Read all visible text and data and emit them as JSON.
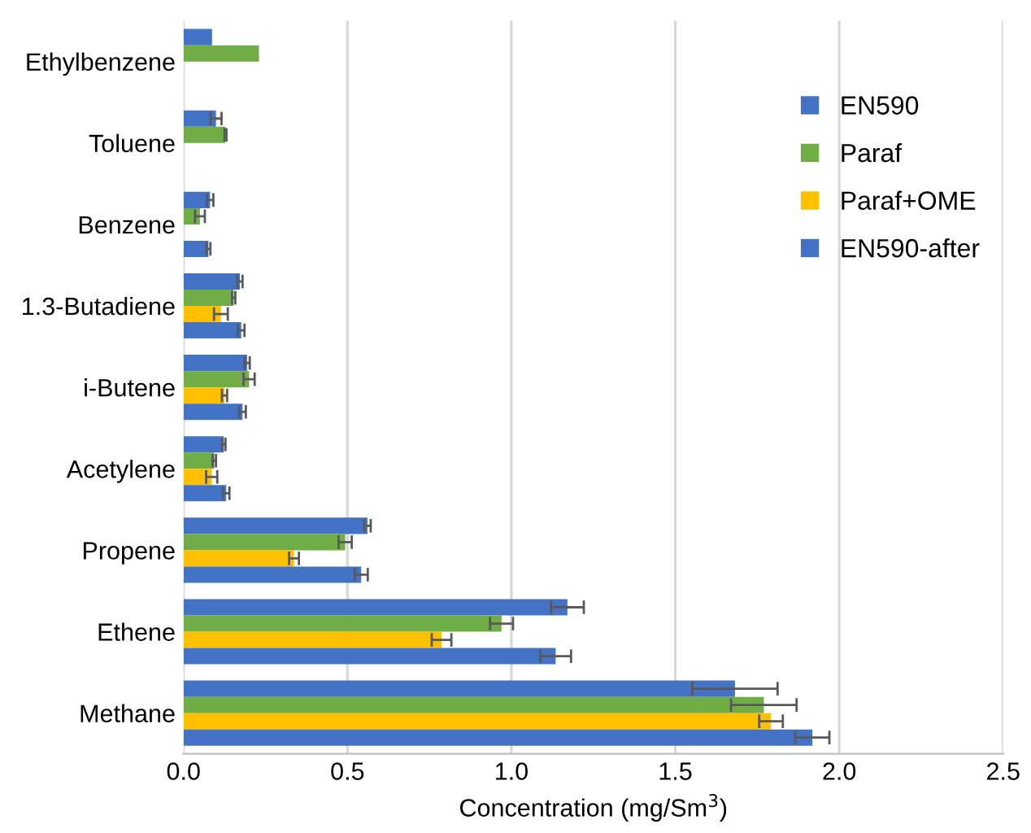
{
  "chart_data": {
    "type": "bar",
    "orientation": "horizontal",
    "xlabel": "Concentration (mg/Sm$^{3}$)",
    "categories": [
      "Ethylbenzene",
      "Toluene",
      "Benzene",
      "1.3-Butadiene",
      "i-Butene",
      "Acetylene",
      "Propene",
      "Ethene",
      "Methane"
    ],
    "series": [
      {
        "name": "EN590",
        "color": "#4472c4",
        "values": [
          0.087,
          0.099,
          0.081,
          0.172,
          0.194,
          0.123,
          0.561,
          1.171,
          1.682
        ],
        "errors": [
          null,
          0.017,
          0.01,
          0.008,
          0.008,
          0.005,
          0.01,
          0.05,
          0.13
        ]
      },
      {
        "name": "Paraf",
        "color": "#70ad47",
        "values": [
          0.23,
          0.128,
          0.05,
          0.153,
          0.2,
          0.094,
          0.493,
          0.97,
          1.77
        ],
        "errors": [
          null,
          0.003,
          0.015,
          0.005,
          0.017,
          0.005,
          0.02,
          0.035,
          0.1
        ]
      },
      {
        "name": "Paraf+OME",
        "color": "#ffc000",
        "values": [
          null,
          null,
          null,
          0.114,
          0.125,
          0.086,
          0.337,
          0.787,
          1.792
        ],
        "errors": [
          null,
          null,
          null,
          0.021,
          0.008,
          0.017,
          0.015,
          0.03,
          0.036
        ]
      },
      {
        "name": "EN590-after",
        "color": "#4472c4",
        "values": [
          null,
          null,
          0.076,
          0.176,
          0.18,
          0.13,
          0.542,
          1.135,
          1.918
        ],
        "errors": [
          null,
          null,
          0.006,
          0.01,
          0.01,
          0.01,
          0.02,
          0.047,
          0.052
        ]
      }
    ],
    "xlim": [
      0,
      2.5
    ],
    "xticks": [
      {
        "value": 0,
        "label": "0.0"
      },
      {
        "value": 0.5,
        "label": "0.5"
      },
      {
        "value": 1,
        "label": "1.0"
      },
      {
        "value": 1.5,
        "label": "1.5"
      },
      {
        "value": 2,
        "label": "2.0"
      },
      {
        "value": 2.5,
        "label": "2.5"
      }
    ],
    "grid": "x",
    "legend": "top right"
  }
}
